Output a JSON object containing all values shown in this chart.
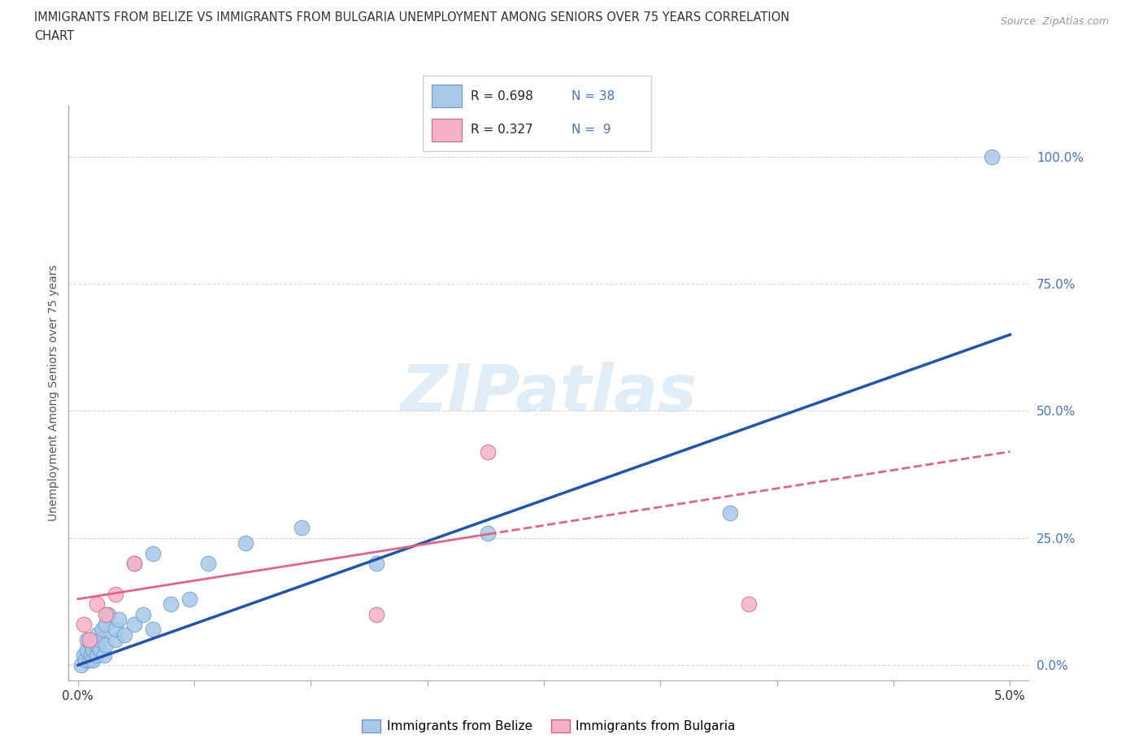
{
  "title_line1": "IMMIGRANTS FROM BELIZE VS IMMIGRANTS FROM BULGARIA UNEMPLOYMENT AMONG SENIORS OVER 75 YEARS CORRELATION",
  "title_line2": "CHART",
  "source": "Source: ZipAtlas.com",
  "ylabel": "Unemployment Among Seniors over 75 years",
  "ytick_labels": [
    "0.0%",
    "25.0%",
    "50.0%",
    "75.0%",
    "100.0%"
  ],
  "ytick_values": [
    0.0,
    0.25,
    0.5,
    0.75,
    1.0
  ],
  "xlim": [
    -0.0005,
    0.051
  ],
  "ylim": [
    -0.03,
    1.1
  ],
  "belize_color": "#a8c8e8",
  "belize_edge_color": "#6699cc",
  "belize_line_color": "#2255aa",
  "bulgaria_color": "#f8b0c8",
  "bulgaria_edge_color": "#cc6688",
  "bulgaria_line_color": "#dd6688",
  "legend_belize_label": "Immigrants from Belize",
  "legend_bulgaria_label": "Immigrants from Bulgaria",
  "watermark_text": "ZIPatlas",
  "xtick_label_left": "0.0%",
  "xtick_label_right": "5.0%",
  "belize_x": [
    0.0002,
    0.0003,
    0.0004,
    0.0005,
    0.0005,
    0.0006,
    0.0007,
    0.0007,
    0.0008,
    0.0008,
    0.001,
    0.001,
    0.001,
    0.0012,
    0.0012,
    0.0013,
    0.0014,
    0.0015,
    0.0015,
    0.0016,
    0.002,
    0.002,
    0.0022,
    0.0025,
    0.003,
    0.003,
    0.0035,
    0.004,
    0.004,
    0.005,
    0.006,
    0.007,
    0.009,
    0.012,
    0.016,
    0.022,
    0.035,
    0.049
  ],
  "belize_y": [
    0.0,
    0.02,
    0.01,
    0.03,
    0.05,
    0.01,
    0.02,
    0.04,
    0.01,
    0.03,
    0.02,
    0.04,
    0.06,
    0.03,
    0.05,
    0.07,
    0.02,
    0.04,
    0.08,
    0.1,
    0.05,
    0.07,
    0.09,
    0.06,
    0.08,
    0.2,
    0.1,
    0.07,
    0.22,
    0.12,
    0.13,
    0.2,
    0.24,
    0.27,
    0.2,
    0.26,
    0.3,
    1.0
  ],
  "bulgaria_x": [
    0.0003,
    0.0006,
    0.001,
    0.0015,
    0.002,
    0.003,
    0.016,
    0.022,
    0.036
  ],
  "bulgaria_y": [
    0.08,
    0.05,
    0.12,
    0.1,
    0.14,
    0.2,
    0.1,
    0.42,
    0.12
  ]
}
